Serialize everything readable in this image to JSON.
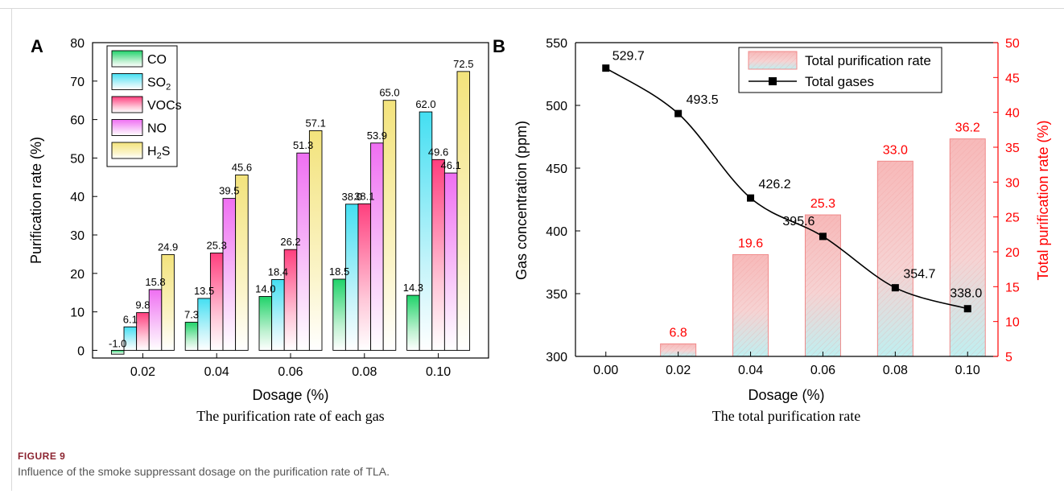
{
  "figure": {
    "label": "FIGURE 9",
    "caption": "Influence of the smoke suppressant dosage on the purification rate of TLA."
  },
  "colors": {
    "CO": "#20d36a",
    "SO2": "#44dff2",
    "VOCs": "#ff3f7e",
    "NO": "#ef6ff2",
    "H2S": "#f3e37c",
    "total_bar": "#f19a9a",
    "right_axis": "#ff0000"
  },
  "chart_data": [
    {
      "panel": "A",
      "type": "bar",
      "subtitle": "The purification rate of each gas",
      "xlabel": "Dosage (%)",
      "ylabel": "Purification rate (%)",
      "categories": [
        "0.02",
        "0.04",
        "0.06",
        "0.08",
        "0.10"
      ],
      "ylim": [
        -2,
        80
      ],
      "yticks": [
        "0",
        "10",
        "20",
        "30",
        "40",
        "50",
        "60",
        "70",
        "80"
      ],
      "legend_position": "top-left",
      "series": [
        {
          "name": "CO",
          "values": [
            -1.0,
            7.3,
            14.0,
            18.5,
            14.3
          ],
          "labels": [
            "-1.0",
            "7.3",
            "14.0",
            "18.5",
            "14.3"
          ]
        },
        {
          "name": "SO2",
          "values": [
            6.1,
            13.5,
            18.4,
            38.0,
            62.0
          ],
          "labels": [
            "6.1",
            "13.5",
            "18.4",
            "38.0",
            "62.0"
          ]
        },
        {
          "name": "VOCs",
          "values": [
            9.8,
            25.3,
            26.2,
            38.1,
            49.6
          ],
          "labels": [
            "9.8",
            "25.3",
            "26.2",
            "38.1",
            "49.6"
          ]
        },
        {
          "name": "NO",
          "values": [
            15.8,
            39.5,
            51.3,
            53.9,
            46.1
          ],
          "labels": [
            "15.8",
            "39.5",
            "51.3",
            "53.9",
            "46.1"
          ]
        },
        {
          "name": "H2S",
          "values": [
            24.9,
            45.6,
            57.1,
            65.0,
            72.5
          ],
          "labels": [
            "24.9",
            "45.6",
            "57.1",
            "65.0",
            "72.5"
          ]
        }
      ]
    },
    {
      "panel": "B",
      "type": "bar+line",
      "subtitle": "The total purification rate",
      "xlabel": "Dosage (%)",
      "ylabel_left": "Gas concentration (ppm)",
      "ylabel_right": "Total purification rate (%)",
      "categories": [
        "0.00",
        "0.02",
        "0.04",
        "0.06",
        "0.08",
        "0.10"
      ],
      "ylim_left": [
        300,
        550
      ],
      "yticks_left": [
        "300",
        "350",
        "400",
        "450",
        "500",
        "550"
      ],
      "ylim_right": [
        5,
        50
      ],
      "yticks_right": [
        "5",
        "10",
        "15",
        "20",
        "25",
        "30",
        "35",
        "40",
        "45",
        "50"
      ],
      "legend_position": "top-right",
      "bar_series": {
        "name": "Total purification rate",
        "categories": [
          "0.02",
          "0.04",
          "0.06",
          "0.08",
          "0.10"
        ],
        "values": [
          6.8,
          19.6,
          25.3,
          33.0,
          36.2
        ],
        "labels": [
          "6.8",
          "19.6",
          "25.3",
          "33.0",
          "36.2"
        ]
      },
      "line_series": {
        "name": "Total gases",
        "values": [
          529.7,
          493.5,
          426.2,
          395.6,
          354.7,
          338.0
        ],
        "labels": [
          "529.7",
          "493.5",
          "426.2",
          "395.6",
          "354.7",
          "338.0"
        ]
      }
    }
  ]
}
